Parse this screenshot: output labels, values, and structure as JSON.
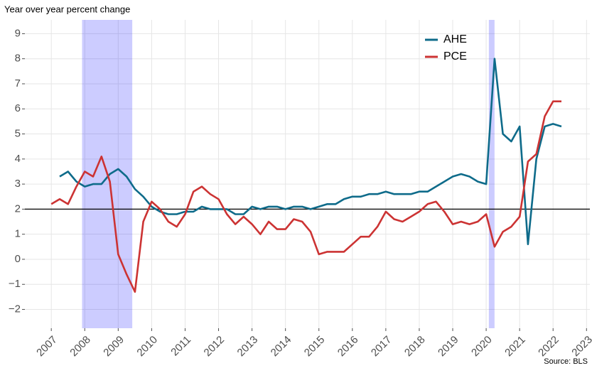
{
  "chart_data": {
    "type": "line",
    "subtitle": "Year over year percent change",
    "caption": "Source: BLS",
    "x": [
      2007.0,
      2007.25,
      2007.5,
      2007.75,
      2008.0,
      2008.25,
      2008.5,
      2008.75,
      2009.0,
      2009.25,
      2009.5,
      2009.75,
      2010.0,
      2010.25,
      2010.5,
      2010.75,
      2011.0,
      2011.25,
      2011.5,
      2011.75,
      2012.0,
      2012.25,
      2012.5,
      2012.75,
      2013.0,
      2013.25,
      2013.5,
      2013.75,
      2014.0,
      2014.25,
      2014.5,
      2014.75,
      2015.0,
      2015.25,
      2015.5,
      2015.75,
      2016.0,
      2016.25,
      2016.5,
      2016.75,
      2017.0,
      2017.25,
      2017.5,
      2017.75,
      2018.0,
      2018.25,
      2018.5,
      2018.75,
      2019.0,
      2019.25,
      2019.5,
      2019.75,
      2020.0,
      2020.25,
      2020.5,
      2020.75,
      2021.0,
      2021.25,
      2021.5,
      2021.75,
      2022.0,
      2022.25
    ],
    "series": [
      {
        "name": "AHE",
        "color": "#0e6b8a",
        "values": [
          null,
          3.3,
          3.5,
          3.1,
          2.9,
          3.0,
          3.0,
          3.4,
          3.6,
          3.3,
          2.8,
          2.5,
          2.1,
          1.9,
          1.8,
          1.8,
          1.9,
          1.9,
          2.1,
          2.0,
          2.0,
          2.0,
          1.8,
          1.8,
          2.1,
          2.0,
          2.1,
          2.1,
          2.0,
          2.1,
          2.1,
          2.0,
          2.1,
          2.2,
          2.2,
          2.4,
          2.5,
          2.5,
          2.6,
          2.6,
          2.7,
          2.6,
          2.6,
          2.6,
          2.7,
          2.7,
          2.9,
          3.1,
          3.3,
          3.4,
          3.3,
          3.1,
          3.0,
          8.0,
          5.0,
          4.7,
          5.3,
          0.6,
          4.0,
          5.3,
          5.4,
          5.3
        ]
      },
      {
        "name": "PCE",
        "color": "#cc3333",
        "values": [
          2.2,
          2.4,
          2.2,
          2.9,
          3.5,
          3.3,
          4.1,
          3.1,
          0.2,
          -0.6,
          -1.3,
          1.5,
          2.3,
          2.0,
          1.5,
          1.3,
          1.8,
          2.7,
          2.9,
          2.6,
          2.4,
          1.8,
          1.4,
          1.7,
          1.4,
          1.0,
          1.5,
          1.2,
          1.2,
          1.6,
          1.5,
          1.1,
          0.2,
          0.3,
          0.3,
          0.3,
          0.6,
          0.9,
          0.9,
          1.3,
          1.9,
          1.6,
          1.5,
          1.7,
          1.9,
          2.2,
          2.3,
          1.9,
          1.4,
          1.5,
          1.4,
          1.5,
          1.8,
          0.5,
          1.1,
          1.3,
          1.7,
          3.9,
          4.2,
          5.7,
          6.3,
          6.3
        ]
      }
    ],
    "recessions": [
      [
        2007.92,
        2009.42
      ],
      [
        2020.08,
        2020.25
      ]
    ],
    "recession_color": "#0000ff",
    "hline": 2,
    "xlim": [
      2006.21,
      2023.1
    ],
    "ylim": [
      -2.75,
      9.55
    ],
    "xticks": [
      2007,
      2008,
      2009,
      2010,
      2011,
      2012,
      2013,
      2014,
      2015,
      2016,
      2017,
      2018,
      2019,
      2020,
      2021,
      2022,
      2023
    ],
    "yticks": [
      {
        "value": -2,
        "label": "−2"
      },
      {
        "value": -1,
        "label": "−1"
      },
      0,
      1,
      2,
      3,
      4,
      5,
      6,
      7,
      8,
      9
    ],
    "grid": true,
    "legend": "top-right"
  }
}
